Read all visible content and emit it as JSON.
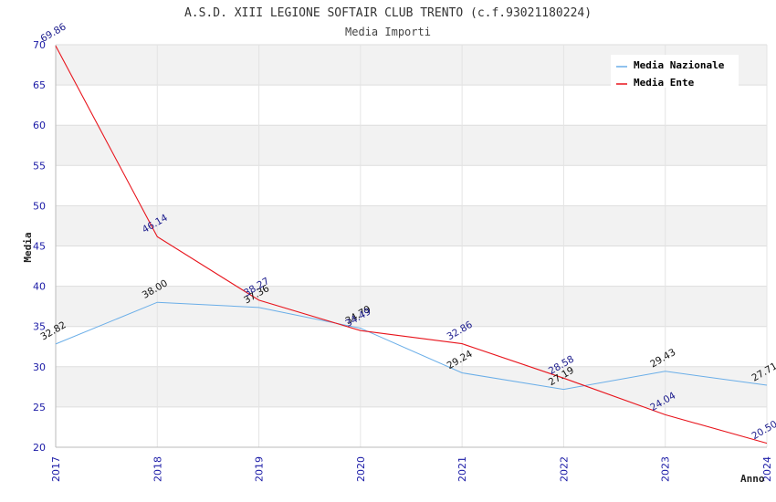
{
  "chart_data": {
    "type": "line",
    "title": "A.S.D. XIII LEGIONE SOFTAIR CLUB TRENTO (c.f.93021180224)",
    "subtitle": "Media Importi",
    "xlabel": "Anno",
    "ylabel": "Media",
    "ylim": [
      20,
      70
    ],
    "yticks": [
      "20",
      "25",
      "30",
      "35",
      "40",
      "45",
      "50",
      "55",
      "60",
      "65",
      "70"
    ],
    "categories": [
      "2017",
      "2018",
      "2019",
      "2020",
      "2021",
      "2022",
      "2023",
      "2024"
    ],
    "grid": true,
    "legend_position": "top-right",
    "series": [
      {
        "name": "Media Nazionale",
        "color": "#6aaee8",
        "values": [
          32.82,
          38.0,
          37.36,
          34.79,
          29.24,
          27.19,
          29.43,
          27.71
        ],
        "labels": [
          "32.82",
          "38.00",
          "37.36",
          "34.79",
          "29.24",
          "27.19",
          "29.43",
          "27.71"
        ]
      },
      {
        "name": "Media Ente",
        "color": "#e8141c",
        "values": [
          69.86,
          46.14,
          38.27,
          34.49,
          32.86,
          28.58,
          24.04,
          20.5
        ],
        "labels": [
          "69.86",
          "46.14",
          "38.27",
          "34.49",
          "32.86",
          "28.58",
          "24.04",
          "20.50"
        ]
      }
    ]
  }
}
